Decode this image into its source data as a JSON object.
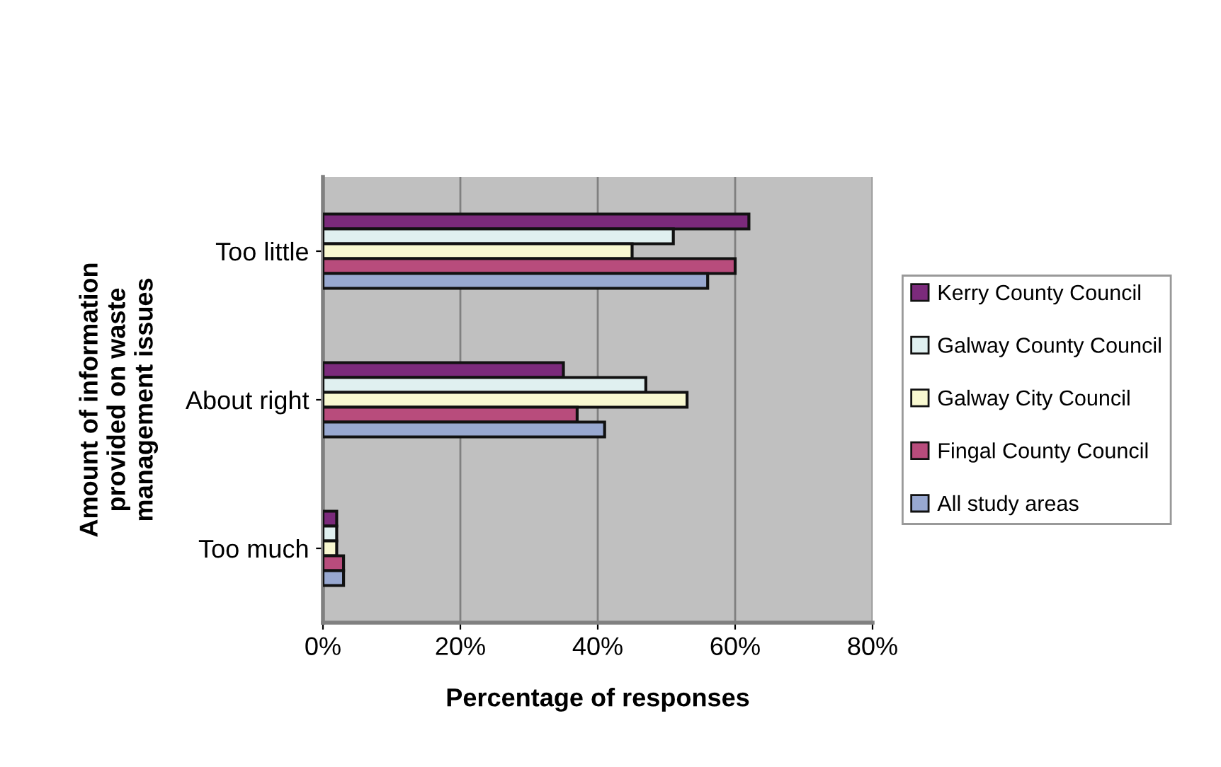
{
  "chart_data": {
    "type": "bar",
    "orientation": "horizontal",
    "xlabel": "Percentage of responses",
    "ylabel": "Amount of information\nprovided on waste\nmanagement issues",
    "categories": [
      "Too little",
      "About right",
      "Too much"
    ],
    "series": [
      {
        "name": "Kerry County Council",
        "color": "#7b2a7b",
        "values": [
          62,
          35,
          2
        ]
      },
      {
        "name": "Galway County Council",
        "color": "#e0f0f0",
        "values": [
          51,
          47,
          2
        ]
      },
      {
        "name": "Galway City Council",
        "color": "#f8f8d0",
        "values": [
          45,
          53,
          2
        ]
      },
      {
        "name": "Fingal County Council",
        "color": "#b84c7c",
        "values": [
          60,
          37,
          3
        ]
      },
      {
        "name": "All study areas",
        "color": "#98a8d0",
        "values": [
          56,
          41,
          3
        ]
      }
    ],
    "xlim": [
      0,
      80
    ],
    "xticks": [
      {
        "value": 0,
        "label": "0%"
      },
      {
        "value": 20,
        "label": "20%"
      },
      {
        "value": 40,
        "label": "40%"
      },
      {
        "value": 60,
        "label": "60%"
      },
      {
        "value": 80,
        "label": "80%"
      }
    ],
    "grid": "x",
    "legend": "right"
  }
}
